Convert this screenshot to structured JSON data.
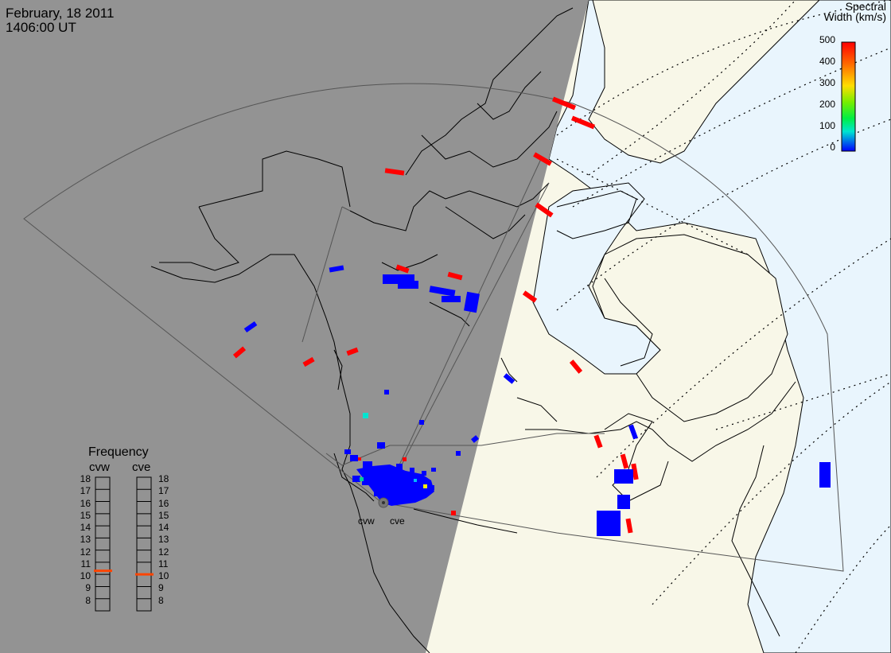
{
  "header": {
    "date": "February, 18 2011",
    "time": "1406:00 UT"
  },
  "colorbar": {
    "title_line1": "Spectral",
    "title_line2": "Width (km/s)",
    "ticks": [
      "500",
      "400",
      "300",
      "200",
      "100",
      "0"
    ]
  },
  "frequency_panel": {
    "title": "Frequency",
    "sites": [
      "cvw",
      "cve"
    ],
    "labels": [
      "18",
      "17",
      "16",
      "15",
      "14",
      "13",
      "12",
      "11",
      "10",
      "9",
      "8"
    ],
    "selected_mhz": {
      "cvw": 10.8,
      "cve": 10.5
    },
    "indicator_color": "#ff4500"
  },
  "radar_sites": [
    "cvw",
    "cve"
  ],
  "colors": {
    "night_side": "#939393",
    "day_land": "#f8f7e8",
    "day_ocean": "#e9f5fd",
    "low_width": "#0000ff",
    "high_width": "#ff0000",
    "mid_width": "#00e5d0"
  }
}
